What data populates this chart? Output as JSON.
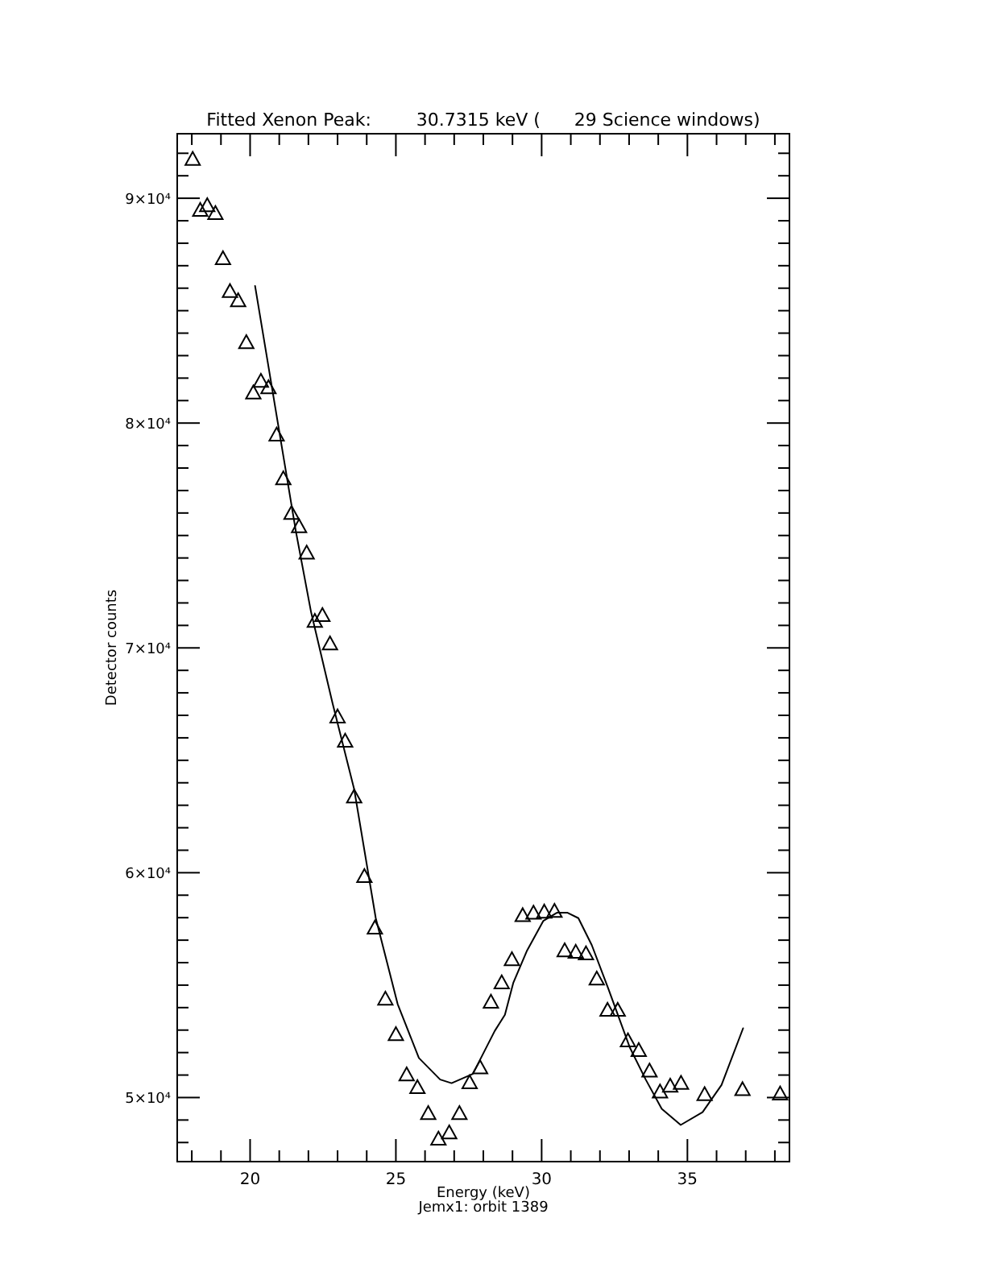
{
  "chart_data": {
    "type": "scatter",
    "title": "Fitted Xenon Peak:        30.7315 keV (      29 Science windows)",
    "xlabel": "Energy (keV)",
    "ylabel": "Detector counts",
    "annotations": [
      "Jemx1: orbit 1389"
    ],
    "xlim": [
      17.5,
      38.5
    ],
    "ylim": [
      47150,
      92870
    ],
    "xticks": [
      {
        "value": 18,
        "label": null
      },
      {
        "value": 19,
        "label": null
      },
      20,
      {
        "value": 21,
        "label": null
      },
      {
        "value": 22,
        "label": null
      },
      {
        "value": 23,
        "label": null
      },
      {
        "value": 24,
        "label": null
      },
      25,
      {
        "value": 26,
        "label": null
      },
      {
        "value": 27,
        "label": null
      },
      {
        "value": 28,
        "label": null
      },
      {
        "value": 29,
        "label": null
      },
      30,
      {
        "value": 31,
        "label": null
      },
      {
        "value": 32,
        "label": null
      },
      {
        "value": 33,
        "label": null
      },
      {
        "value": 34,
        "label": null
      },
      35,
      {
        "value": 36,
        "label": null
      },
      {
        "value": 37,
        "label": null
      },
      {
        "value": 38,
        "label": null
      }
    ],
    "yticks": [
      {
        "value": 48000,
        "label": null
      },
      {
        "value": 49000,
        "label": null
      },
      {
        "value": 50000,
        "label": "5×10⁴"
      },
      {
        "value": 51000,
        "label": null
      },
      {
        "value": 52000,
        "label": null
      },
      {
        "value": 53000,
        "label": null
      },
      {
        "value": 54000,
        "label": null
      },
      {
        "value": 55000,
        "label": null
      },
      {
        "value": 56000,
        "label": null
      },
      {
        "value": 57000,
        "label": null
      },
      {
        "value": 58000,
        "label": null
      },
      {
        "value": 59000,
        "label": null
      },
      {
        "value": 60000,
        "label": "6×10⁴"
      },
      {
        "value": 61000,
        "label": null
      },
      {
        "value": 62000,
        "label": null
      },
      {
        "value": 63000,
        "label": null
      },
      {
        "value": 64000,
        "label": null
      },
      {
        "value": 65000,
        "label": null
      },
      {
        "value": 66000,
        "label": null
      },
      {
        "value": 67000,
        "label": null
      },
      {
        "value": 68000,
        "label": null
      },
      {
        "value": 69000,
        "label": null
      },
      {
        "value": 70000,
        "label": "7×10⁴"
      },
      {
        "value": 71000,
        "label": null
      },
      {
        "value": 72000,
        "label": null
      },
      {
        "value": 73000,
        "label": null
      },
      {
        "value": 74000,
        "label": null
      },
      {
        "value": 75000,
        "label": null
      },
      {
        "value": 76000,
        "label": null
      },
      {
        "value": 77000,
        "label": null
      },
      {
        "value": 78000,
        "label": null
      },
      {
        "value": 79000,
        "label": null
      },
      {
        "value": 80000,
        "label": "8×10⁴"
      },
      {
        "value": 81000,
        "label": null
      },
      {
        "value": 82000,
        "label": null
      },
      {
        "value": 83000,
        "label": null
      },
      {
        "value": 84000,
        "label": null
      },
      {
        "value": 85000,
        "label": null
      },
      {
        "value": 86000,
        "label": null
      },
      {
        "value": 87000,
        "label": null
      },
      {
        "value": 88000,
        "label": null
      },
      {
        "value": 89000,
        "label": null
      },
      {
        "value": 90000,
        "label": "9×10⁴"
      },
      {
        "value": 91000,
        "label": null
      },
      {
        "value": 92000,
        "label": null
      }
    ],
    "grid": false,
    "series": [
      {
        "marker": "triangle",
        "color": "#000000",
        "x": [
          18.03,
          18.29,
          18.53,
          18.81,
          19.07,
          19.31,
          19.59,
          19.87,
          20.11,
          20.37,
          20.63,
          20.91,
          21.14,
          21.42,
          21.68,
          21.94,
          22.22,
          22.48,
          22.74,
          23.0,
          23.26,
          23.57,
          23.92,
          24.28,
          24.64,
          25.0,
          25.37,
          25.74,
          26.11,
          26.46,
          26.83,
          27.18,
          27.53,
          27.89,
          28.26,
          28.63,
          28.98,
          29.35,
          29.72,
          30.09,
          30.44,
          30.79,
          31.17,
          31.52,
          31.89,
          32.26,
          32.61,
          32.96,
          33.33,
          33.7,
          34.06,
          34.41,
          34.78,
          35.59,
          36.89,
          38.18
        ],
        "values": [
          91740,
          89470,
          89680,
          89330,
          87320,
          85860,
          85450,
          83590,
          81350,
          81870,
          81580,
          79480,
          77530,
          75990,
          75400,
          74230,
          71190,
          71450,
          70190,
          66940,
          65860,
          63380,
          59840,
          57550,
          54390,
          52810,
          51020,
          50450,
          49300,
          48160,
          48440,
          49300,
          50670,
          51330,
          54250,
          55110,
          56140,
          58100,
          58210,
          58260,
          58290,
          56540,
          56470,
          56400,
          55280,
          53890,
          53890,
          52530,
          52100,
          51190,
          50260,
          50520,
          50640,
          50140,
          50360,
          50170
        ]
      },
      {
        "type": "line",
        "marker": "none",
        "line_style": "solid",
        "color": "#000000",
        "x": [
          20.17,
          21.57,
          22.09,
          22.83,
          23.57,
          24.31,
          25.06,
          25.79,
          26.52,
          26.91,
          27.64,
          28.39,
          28.74,
          29.03,
          29.5,
          30.06,
          30.52,
          30.89,
          31.26,
          31.72,
          32.28,
          33.02,
          33.57,
          34.12,
          34.77,
          35.52,
          36.17,
          36.91
        ],
        "values": [
          86100,
          75180,
          71600,
          67530,
          63710,
          57980,
          54160,
          51760,
          50800,
          50640,
          51050,
          52960,
          53680,
          55110,
          56540,
          57860,
          58220,
          58220,
          57980,
          56780,
          54870,
          52240,
          50800,
          49500,
          48780,
          49350,
          50560,
          53080
        ]
      }
    ]
  }
}
